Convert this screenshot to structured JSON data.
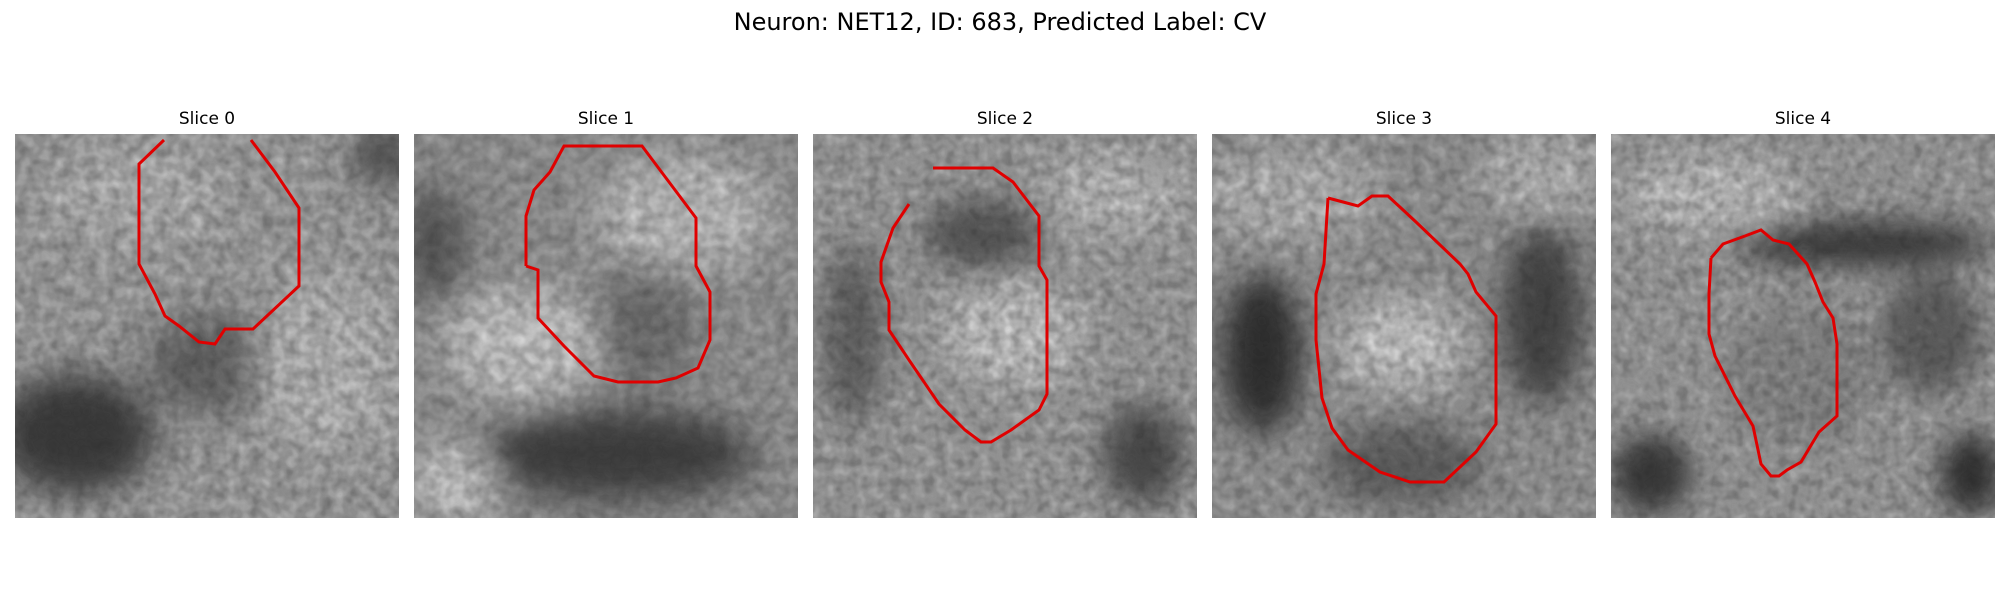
{
  "figure": {
    "title": "Neuron: NET12, ID: 683, Predicted Label: CV"
  },
  "panels": [
    {
      "title": "Slice 0"
    },
    {
      "title": "Slice 1"
    },
    {
      "title": "Slice 2"
    },
    {
      "title": "Slice 3"
    },
    {
      "title": "Slice 4"
    }
  ],
  "colors": {
    "outline": "#e00000",
    "background": "#ffffff"
  }
}
